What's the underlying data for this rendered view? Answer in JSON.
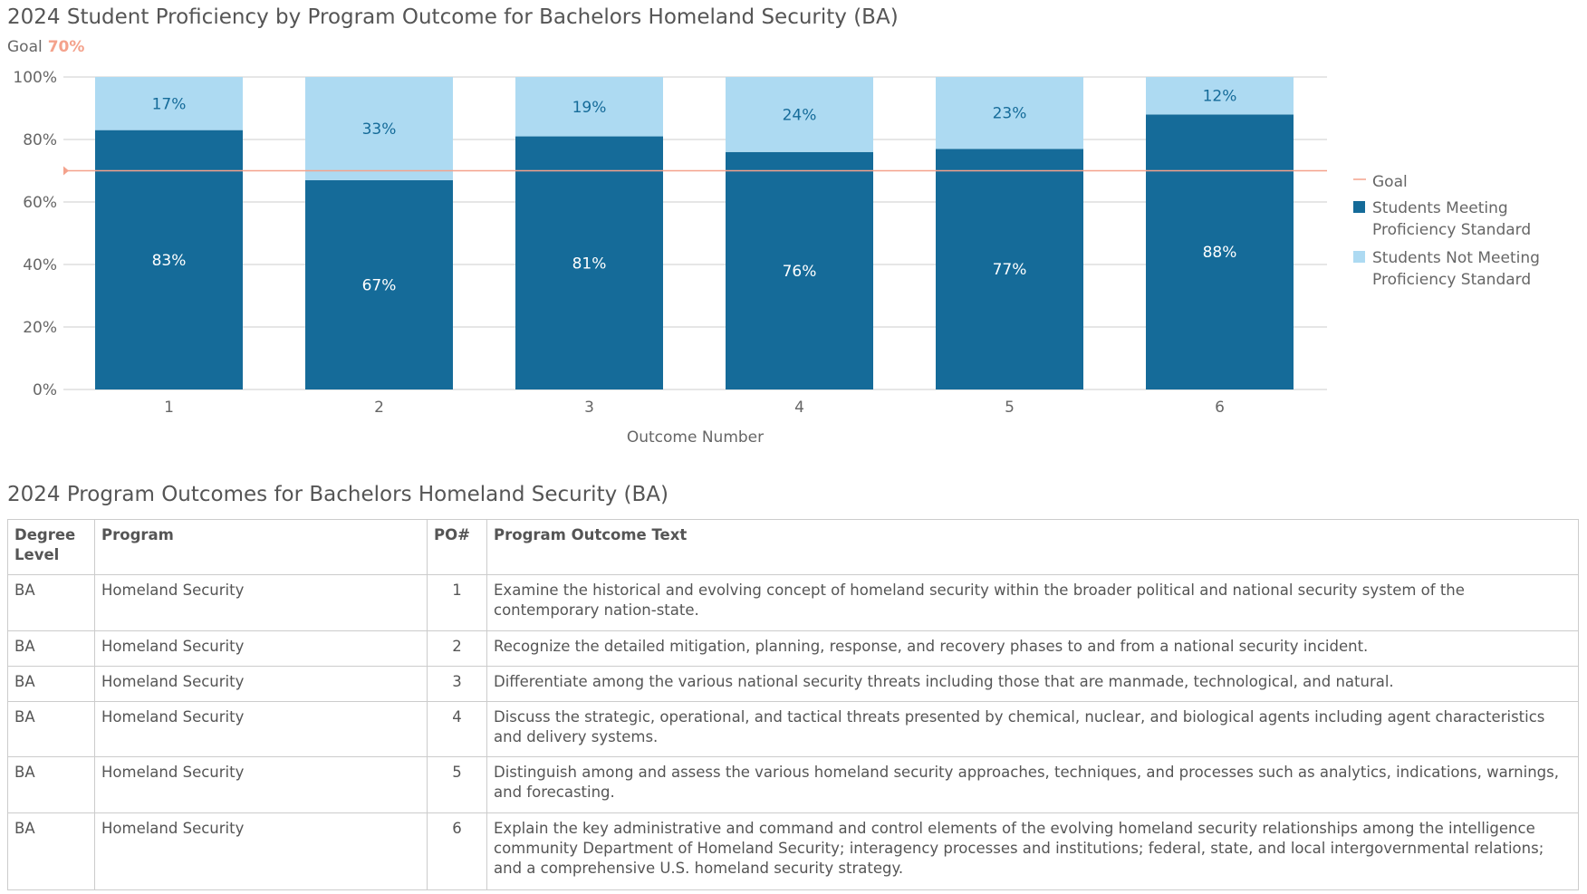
{
  "title": "2024 Student Proficiency by Program Outcome for Bachelors Homeland Security (BA)",
  "goal": {
    "label": "Goal",
    "value": "70%"
  },
  "chart_data": {
    "type": "bar",
    "stacked": true,
    "title": "2024 Student Proficiency by Program Outcome for Bachelors Homeland Security (BA)",
    "xlabel": "Outcome Number",
    "ylabel": "",
    "categories": [
      "1",
      "2",
      "3",
      "4",
      "5",
      "6"
    ],
    "ylim": [
      0,
      100
    ],
    "yticks": [
      "0%",
      "20%",
      "40%",
      "60%",
      "80%",
      "100%"
    ],
    "goal": 70,
    "series": [
      {
        "name": "Students Meeting Proficiency Standard",
        "values": [
          83,
          67,
          81,
          76,
          77,
          88
        ],
        "labels": [
          "83%",
          "67%",
          "81%",
          "76%",
          "77%",
          "88%"
        ],
        "color": "#156b99"
      },
      {
        "name": "Students Not Meeting Proficiency Standard",
        "values": [
          17,
          33,
          19,
          24,
          23,
          12
        ],
        "labels": [
          "17%",
          "33%",
          "19%",
          "24%",
          "23%",
          "12%"
        ],
        "color": "#addaf2"
      }
    ],
    "legend": {
      "position": "right",
      "items": [
        "Goal",
        "Students Meeting Proficiency Standard",
        "Students Not Meeting Proficiency Standard"
      ]
    },
    "goal_color": "#f4a28c",
    "grid": true
  },
  "table": {
    "title": "2024 Program Outcomes for Bachelors Homeland Security (BA)",
    "headers": [
      "Degree Level",
      "Program",
      "PO#",
      "Program Outcome Text"
    ],
    "rows": [
      [
        "BA",
        "Homeland Security",
        "1",
        "Examine the historical and evolving concept of homeland security within the broader political and national security system of the contemporary nation-state."
      ],
      [
        "BA",
        "Homeland Security",
        "2",
        "Recognize the detailed mitigation, planning, response, and recovery phases to and from a national security incident."
      ],
      [
        "BA",
        "Homeland Security",
        "3",
        "Differentiate among the various national security threats including those that are manmade, technological, and natural."
      ],
      [
        "BA",
        "Homeland Security",
        "4",
        "Discuss the strategic, operational, and tactical threats presented by chemical, nuclear, and biological agents including agent characteristics and delivery systems."
      ],
      [
        "BA",
        "Homeland Security",
        "5",
        "Distinguish among and assess the various homeland security approaches, techniques, and processes such as analytics, indications, warnings, and forecasting."
      ],
      [
        "BA",
        "Homeland Security",
        "6",
        "Explain the key administrative and command and control elements of the evolving homeland security relationships among the intelligence community Department of Homeland Security; interagency processes and institutions; federal, state, and local intergovernmental relations; and a comprehensive U.S. homeland security strategy."
      ]
    ]
  }
}
